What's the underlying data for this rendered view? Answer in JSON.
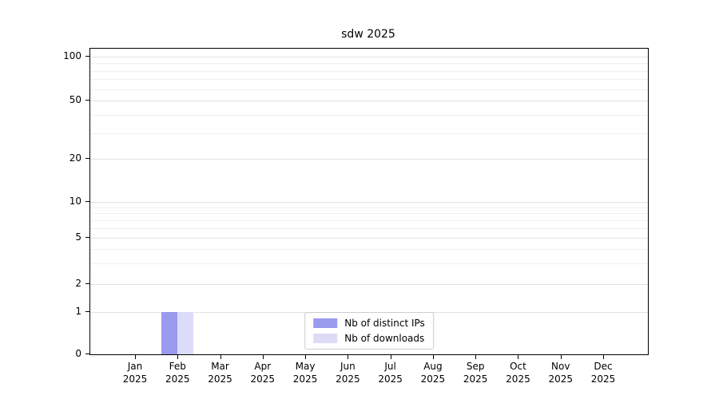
{
  "chart_data": {
    "type": "bar",
    "title": "sdw 2025",
    "categories": [
      "Jan",
      "Feb",
      "Mar",
      "Apr",
      "May",
      "Jun",
      "Jul",
      "Aug",
      "Sep",
      "Oct",
      "Nov",
      "Dec"
    ],
    "x_year": "2025",
    "series": [
      {
        "name": "Nb of distinct IPs",
        "color": "#9a9aee",
        "values": [
          0,
          1,
          0,
          0,
          0,
          0,
          0,
          0,
          0,
          0,
          0,
          0
        ]
      },
      {
        "name": "Nb of downloads",
        "color": "#dcdcf8",
        "values": [
          0,
          1,
          0,
          0,
          0,
          0,
          0,
          0,
          0,
          0,
          0,
          0
        ]
      }
    ],
    "yticks": [
      0,
      1,
      2,
      5,
      10,
      20,
      50,
      100
    ],
    "ylim": [
      0,
      115
    ],
    "yscale": "log above 1, 0 shown at baseline",
    "grid": "horizontal, major and minor log gridlines",
    "legend_position": "lower center"
  }
}
